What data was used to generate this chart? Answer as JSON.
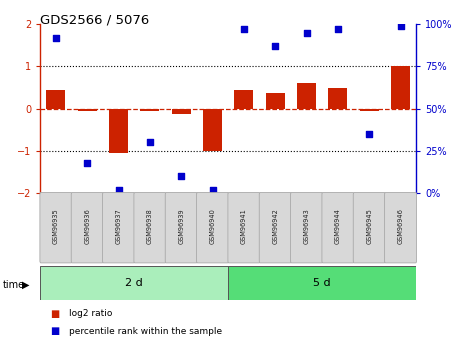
{
  "title": "GDS2566 / 5076",
  "samples": [
    "GSM96935",
    "GSM96936",
    "GSM96937",
    "GSM96938",
    "GSM96939",
    "GSM96940",
    "GSM96941",
    "GSM96942",
    "GSM96943",
    "GSM96944",
    "GSM96945",
    "GSM96946"
  ],
  "log2_ratio": [
    0.45,
    -0.05,
    -1.05,
    -0.05,
    -0.12,
    -1.0,
    0.45,
    0.38,
    0.6,
    0.48,
    -0.05,
    1.0
  ],
  "percentile": [
    92,
    18,
    2,
    30,
    10,
    2,
    97,
    87,
    95,
    97,
    35,
    99
  ],
  "groups": [
    {
      "label": "2 d",
      "start": 0,
      "end": 6,
      "color": "#aaeebb"
    },
    {
      "label": "5 d",
      "start": 6,
      "end": 12,
      "color": "#55dd77"
    }
  ],
  "ylim_left": [
    -2,
    2
  ],
  "ylim_right": [
    0,
    100
  ],
  "yticks_left": [
    -2,
    -1,
    0,
    1,
    2
  ],
  "ytick_labels_right": [
    "0%",
    "25%",
    "50%",
    "75%",
    "100%"
  ],
  "bar_color": "#cc2200",
  "scatter_color": "#0000cc",
  "hline_color": "#cc2200",
  "dotted_color": "#000000",
  "legend_labels": [
    "log2 ratio",
    "percentile rank within the sample"
  ]
}
